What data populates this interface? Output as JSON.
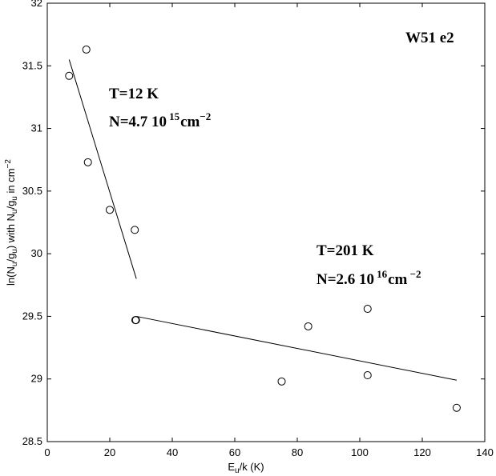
{
  "chart_data": {
    "type": "scatter",
    "title": "W51 e2",
    "xlabel": {
      "main": "E",
      "sub": "u",
      "rest": "/k (K)"
    },
    "ylabel": {
      "p1": "ln(N",
      "s1": "u",
      "p2": "/g",
      "s2": "u",
      "p3": ") with N",
      "s3": "u",
      "p4": "/g",
      "s4": "u",
      "p5": " in cm",
      "sup": "−2"
    },
    "xlim": [
      0,
      140
    ],
    "ylim": [
      28.5,
      32
    ],
    "xticks": [
      0,
      20,
      40,
      60,
      80,
      100,
      120,
      140
    ],
    "yticks": [
      28.5,
      29,
      29.5,
      30,
      30.5,
      31,
      31.5,
      32
    ],
    "xtick_labels": [
      "0",
      "20",
      "40",
      "60",
      "80",
      "100",
      "120",
      "140"
    ],
    "ytick_labels": [
      "28.5",
      "29",
      "29.5",
      "30",
      "30.5",
      "31",
      "31.5",
      "32"
    ],
    "grid": false,
    "points": [
      {
        "x": 7.0,
        "y": 31.42
      },
      {
        "x": 12.5,
        "y": 31.63
      },
      {
        "x": 13.0,
        "y": 30.73
      },
      {
        "x": 20.0,
        "y": 30.35
      },
      {
        "x": 28.0,
        "y": 30.19
      },
      {
        "x": 28.2,
        "y": 29.47
      },
      {
        "x": 28.4,
        "y": 29.47
      },
      {
        "x": 75.0,
        "y": 28.98
      },
      {
        "x": 83.5,
        "y": 29.42
      },
      {
        "x": 102.5,
        "y": 29.56
      },
      {
        "x": 102.5,
        "y": 29.03
      },
      {
        "x": 131.0,
        "y": 28.77
      }
    ],
    "fits": [
      {
        "x": [
          7.0,
          28.5
        ],
        "y": [
          31.55,
          29.8
        ]
      },
      {
        "x": [
          28.5,
          131.0
        ],
        "y": [
          29.5,
          28.99
        ]
      }
    ],
    "annotations": [
      {
        "line1": "T=12 K",
        "n_base": "N=4.7 10",
        "n_exp": "15",
        "n_unit": "cm",
        "n_unit_exp": "−2"
      },
      {
        "line1": "T=201 K",
        "n_base": "N=2.6 10",
        "n_exp": "16",
        "n_unit": "cm",
        "n_unit_exp": " −2"
      }
    ]
  }
}
